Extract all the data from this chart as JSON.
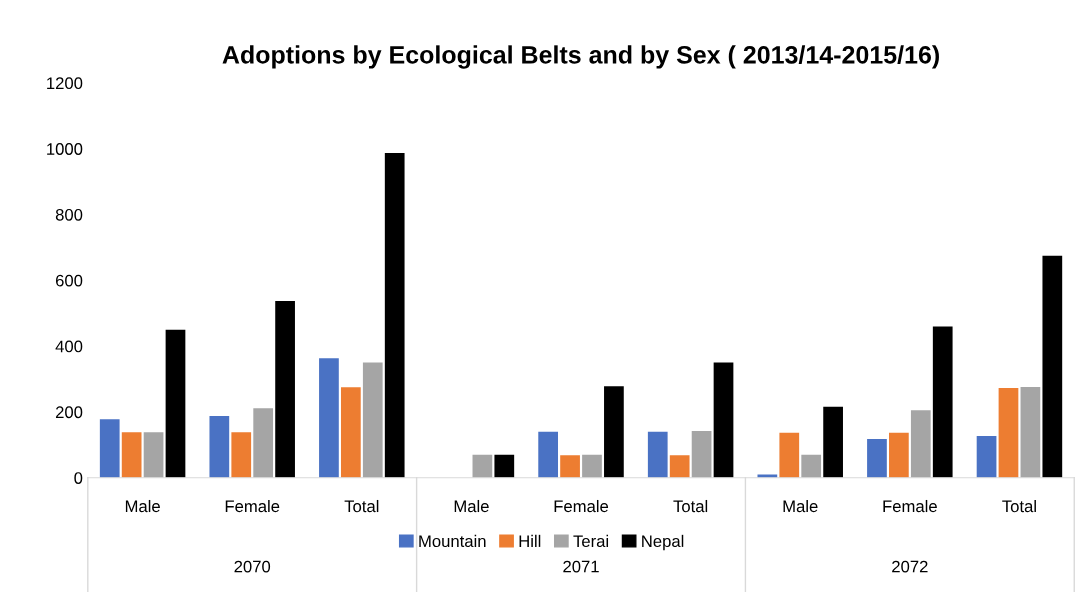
{
  "chart_data": {
    "type": "bar",
    "title": "Adoptions by Ecological Belts and by Sex ( 2013/14-2015/16)",
    "categories": [
      "Male",
      "Female",
      "Total",
      "Male",
      "Female",
      "Total",
      "Male",
      "Female",
      "Total"
    ],
    "series": [
      {
        "name": "Mountain",
        "color": "#4a72c4",
        "values": [
          178,
          188,
          363,
          0,
          140,
          140,
          10,
          118,
          127
        ]
      },
      {
        "name": "Hill",
        "color": "#ed7d31",
        "values": [
          138,
          138,
          275,
          0,
          68,
          68,
          137,
          137,
          273
        ]
      },
      {
        "name": "Terai",
        "color": "#a5a5a5",
        "values": [
          138,
          211,
          350,
          70,
          70,
          142,
          70,
          205,
          276
        ]
      },
      {
        "name": "Nepal",
        "color": "#000000",
        "values": [
          450,
          537,
          987,
          70,
          278,
          350,
          216,
          460,
          675
        ]
      }
    ],
    "annotations": [
      "2070",
      "2071",
      "2072"
    ],
    "ylim": [
      0,
      1200
    ],
    "yticks": [
      0,
      200,
      400,
      600,
      800,
      1000,
      1200
    ],
    "grid": false,
    "legend": "bottom"
  }
}
